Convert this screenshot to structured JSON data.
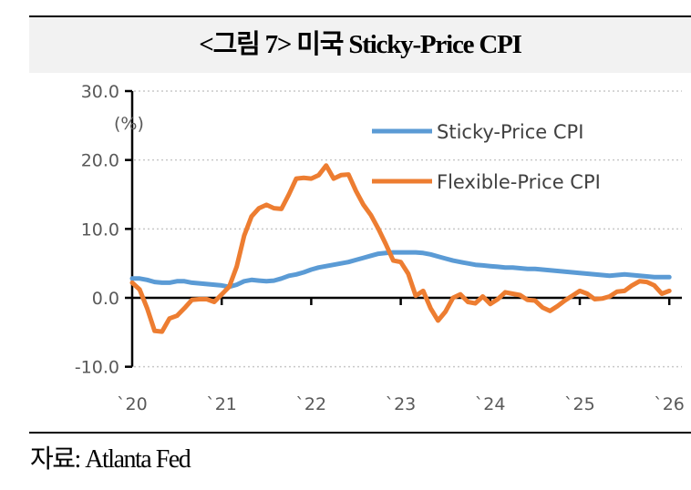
{
  "title": "<그림 7> 미국 Sticky-Price CPI",
  "source": "자료: Atlanta Fed",
  "chart_data": {
    "type": "line",
    "title": "<그림 7> 미국 Sticky-Price CPI",
    "xlabel": "",
    "ylabel": "(%)",
    "unit_label": "(%)",
    "ylim": [
      -10,
      30
    ],
    "yticks": [
      -10,
      0,
      10,
      20,
      30
    ],
    "ytick_labels": [
      "-10.0",
      "0.0",
      "10.0",
      "20.0",
      "30.0"
    ],
    "xlim": [
      "2020-01",
      "2026-01"
    ],
    "xtick_labels": [
      "`20",
      "`21",
      "`22",
      "`23",
      "`24",
      "`25",
      "`26"
    ],
    "grid": true,
    "legend_position": "top-right",
    "colors": {
      "sticky": "#5b9bd5",
      "flexible": "#ed7d31"
    },
    "x_start": "2020-01",
    "x_step": "monthly",
    "series": [
      {
        "name": "Sticky-Price CPI",
        "color": "#5b9bd5",
        "values": [
          2.8,
          2.8,
          2.6,
          2.3,
          2.2,
          2.2,
          2.4,
          2.4,
          2.2,
          2.1,
          2.0,
          1.9,
          1.8,
          1.6,
          1.9,
          2.4,
          2.6,
          2.5,
          2.4,
          2.5,
          2.8,
          3.2,
          3.4,
          3.7,
          4.1,
          4.4,
          4.6,
          4.8,
          5.0,
          5.2,
          5.5,
          5.8,
          6.1,
          6.4,
          6.5,
          6.6,
          6.6,
          6.6,
          6.6,
          6.5,
          6.3,
          6.0,
          5.7,
          5.4,
          5.2,
          5.0,
          4.8,
          4.7,
          4.6,
          4.5,
          4.4,
          4.4,
          4.3,
          4.2,
          4.2,
          4.1,
          4.0,
          3.9,
          3.8,
          3.7,
          3.6,
          3.5,
          3.4,
          3.3,
          3.2,
          3.3,
          3.4,
          3.3,
          3.2,
          3.1,
          3.0,
          3.0,
          3.0
        ]
      },
      {
        "name": "Flexible-Price CPI",
        "color": "#ed7d31",
        "values": [
          2.2,
          1.2,
          -1.5,
          -4.8,
          -4.9,
          -3.0,
          -2.6,
          -1.5,
          -0.3,
          -0.2,
          -0.2,
          -0.6,
          0.5,
          1.6,
          4.5,
          9.0,
          11.8,
          13.0,
          13.5,
          13.0,
          12.9,
          15.0,
          17.3,
          17.4,
          17.3,
          17.8,
          19.2,
          17.3,
          17.8,
          17.9,
          15.5,
          13.5,
          12.0,
          10.0,
          7.8,
          5.4,
          5.2,
          3.5,
          0.3,
          1.0,
          -1.5,
          -3.3,
          -2.0,
          0.0,
          0.5,
          -0.6,
          -0.8,
          0.2,
          -0.9,
          -0.2,
          0.8,
          0.6,
          0.4,
          -0.3,
          -0.4,
          -1.4,
          -1.9,
          -1.2,
          -0.4,
          0.3,
          1.0,
          0.6,
          -0.2,
          -0.1,
          0.2,
          0.9,
          1.0,
          1.8,
          2.4,
          2.3,
          1.8,
          0.6,
          1.0
        ]
      }
    ]
  }
}
